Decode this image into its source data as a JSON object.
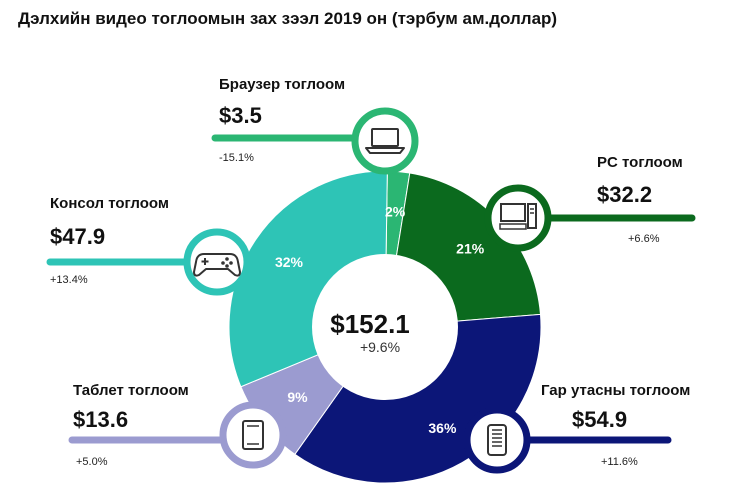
{
  "chart_data": {
    "type": "pie",
    "title": "Дэлхийн видео тоглоомын зах зээл 2019 он (тэрбум ам.доллар)",
    "total": {
      "value": "$152.1",
      "growth": "+9.6%"
    },
    "slices": [
      {
        "key": "browser",
        "name": "Браузер тоглоом",
        "value": 3.5,
        "value_label": "$3.5",
        "percent": 2,
        "percent_label": "2%",
        "growth": "-15.1%",
        "color": "#2bb673",
        "icon": "laptop-icon"
      },
      {
        "key": "pc",
        "name": "PC тоглоом",
        "value": 32.2,
        "value_label": "$32.2",
        "percent": 21,
        "percent_label": "21%",
        "growth": "+6.6%",
        "color": "#0b6a1e",
        "icon": "desktop-pc-icon"
      },
      {
        "key": "mobile",
        "name": "Гар утасны тоглоом",
        "value": 54.9,
        "value_label": "$54.9",
        "percent": 36,
        "percent_label": "36%",
        "growth": "+11.6%",
        "color": "#0c1678",
        "icon": "smartphone-icon"
      },
      {
        "key": "tablet",
        "name": "Таблет тоглоом",
        "value": 13.6,
        "value_label": "$13.6",
        "percent": 9,
        "percent_label": "9%",
        "growth": "+5.0%",
        "color": "#9b9bd0",
        "icon": "tablet-icon"
      },
      {
        "key": "console",
        "name": "Консол тоглоом",
        "value": 47.9,
        "value_label": "$47.9",
        "percent": 32,
        "percent_label": "32%",
        "growth": "+13.4%",
        "color": "#2ec4b6",
        "icon": "gamepad-icon"
      }
    ]
  }
}
